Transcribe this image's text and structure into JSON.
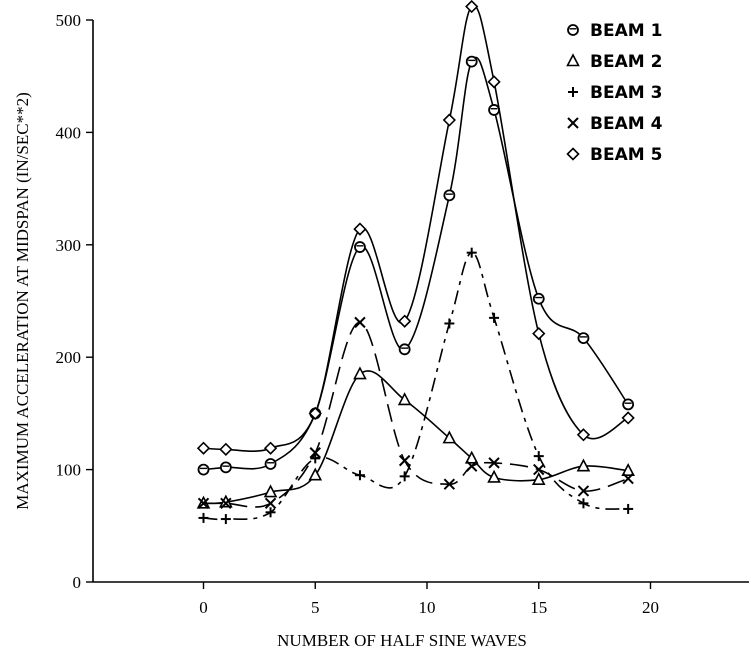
{
  "chart_data": {
    "type": "line",
    "xlabel": "NUMBER OF HALF SINE WAVES",
    "ylabel": "MAXIMUM ACCELERATION AT MIDSPAN (IN/SEC**2)",
    "xlim": [
      -5,
      25
    ],
    "ylim": [
      0,
      500
    ],
    "xticks": [
      0,
      5,
      10,
      15,
      20
    ],
    "yticks": [
      0,
      100,
      200,
      300,
      400,
      500
    ],
    "legend_position": "top-right",
    "grid": false,
    "series": [
      {
        "name": "BEAM 1",
        "marker": "circle",
        "x": [
          0,
          1,
          3,
          5,
          7,
          9,
          11,
          12,
          13,
          15,
          17,
          19
        ],
        "y": [
          100,
          102,
          105,
          150,
          298,
          207,
          344,
          463,
          420,
          252,
          217,
          158
        ]
      },
      {
        "name": "BEAM 2",
        "marker": "triangle",
        "x": [
          0,
          1,
          3,
          5,
          7,
          9,
          11,
          12,
          13,
          15,
          17,
          19
        ],
        "y": [
          70,
          71,
          80,
          95,
          185,
          162,
          128,
          110,
          93,
          91,
          103,
          99
        ]
      },
      {
        "name": "BEAM 3",
        "marker": "plus",
        "x": [
          0,
          1,
          3,
          5,
          7,
          9,
          11,
          12,
          13,
          15,
          17,
          19
        ],
        "y": [
          57,
          56,
          62,
          110,
          95,
          94,
          230,
          293,
          235,
          112,
          70,
          65
        ]
      },
      {
        "name": "BEAM 4",
        "marker": "cross",
        "x": [
          0,
          1,
          3,
          5,
          7,
          9,
          11,
          12,
          13,
          15,
          17,
          19
        ],
        "y": [
          70,
          70,
          70,
          115,
          231,
          108,
          87,
          103,
          106,
          100,
          81,
          92
        ]
      },
      {
        "name": "BEAM 5",
        "marker": "diamond",
        "x": [
          0,
          1,
          3,
          5,
          7,
          9,
          11,
          12,
          13,
          15,
          17,
          19
        ],
        "y": [
          119,
          118,
          119,
          150,
          314,
          232,
          411,
          512,
          445,
          221,
          131,
          146
        ]
      }
    ]
  }
}
